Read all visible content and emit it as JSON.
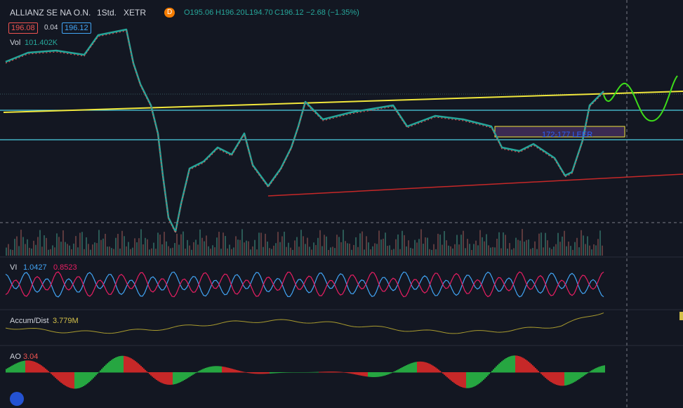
{
  "header": {
    "symbol": "ALLIANZ SE NA O.N.",
    "interval": "1Std.",
    "exchange": "XETR",
    "badge": "D",
    "open": "O195.06",
    "high": "H196.20",
    "low": "L194.70",
    "close": "C196.12",
    "change": "−2.68 (−1.35%)"
  },
  "quotes": {
    "bid": "196.08",
    "spread": "0.04",
    "ask": "196.12"
  },
  "volume": {
    "label": "Vol",
    "value": "101.402K"
  },
  "annotation": "172-177 LEER",
  "vi": {
    "label": "VI",
    "plus": "1.0427",
    "minus": "0.8523"
  },
  "accum": {
    "label": "Accum/Dist",
    "value": "3.779M"
  },
  "ao": {
    "label": "AO",
    "value": "3.04"
  }
}
